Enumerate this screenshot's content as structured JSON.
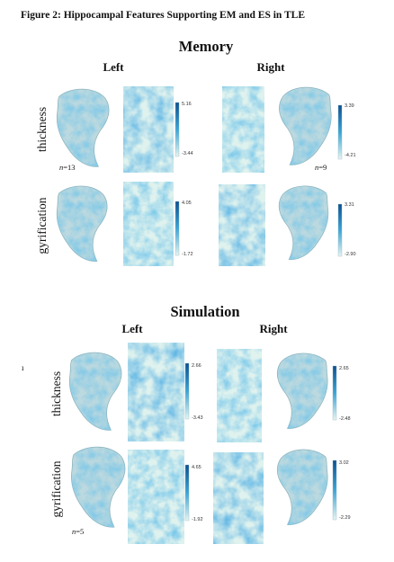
{
  "figure_title": "Figure 2: Hippocampal Features Supporting EM and ES in TLE",
  "stray_mark": "ı",
  "colors": {
    "dark": "#0b4f8f",
    "mid": "#3aa5d6",
    "light": "#dff2ee",
    "brain": "#bcd9df"
  },
  "panels": [
    {
      "title": "Memory",
      "left_label": "Left",
      "right_label": "Right",
      "rows": [
        {
          "label": "thickness",
          "left": {
            "max": "5.16",
            "min": "-3.44",
            "n": "13"
          },
          "right": {
            "max": "3.39",
            "min": "-4.21",
            "n": "9"
          }
        },
        {
          "label": "gyrification",
          "left": {
            "max": "4.05",
            "min": "-1.72"
          },
          "right": {
            "max": "3.31",
            "min": "-2.90"
          }
        }
      ]
    },
    {
      "title": "Simulation",
      "left_label": "Left",
      "right_label": "Right",
      "rows": [
        {
          "label": "thickness",
          "left": {
            "max": "2.66",
            "min": "-3.43"
          },
          "right": {
            "max": "2.65",
            "min": "-2.48"
          }
        },
        {
          "label": "gyrification",
          "left": {
            "max": "4.65",
            "min": "-1.92",
            "n": "5"
          },
          "right": {
            "max": "3.02",
            "min": "-2.29"
          }
        }
      ]
    }
  ]
}
